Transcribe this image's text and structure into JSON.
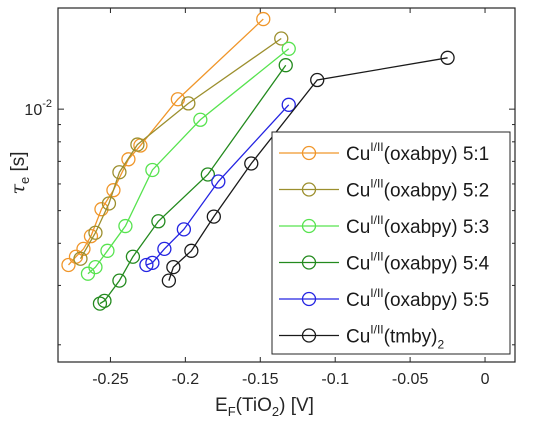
{
  "chart_data": {
    "type": "line",
    "title": "",
    "xlabel": {
      "main": "E",
      "sub": "F",
      "paren_open": "(TiO",
      "paren_sub": "2",
      "paren_close": ") [V]"
    },
    "ylabel": {
      "main": "τ",
      "sub": "e",
      "unit": " [s]"
    },
    "x_range": [
      -0.285,
      0.02
    ],
    "y_range_log10": [
      -2.75,
      -1.7
    ],
    "y_scale": "log",
    "x_ticks": [
      {
        "value": -0.25,
        "label": "-0.25"
      },
      {
        "value": -0.2,
        "label": "-0.2"
      },
      {
        "value": -0.15,
        "label": "-0.15"
      },
      {
        "value": -0.1,
        "label": "-0.1"
      },
      {
        "value": -0.05,
        "label": "-0.05"
      },
      {
        "value": 0,
        "label": "0"
      }
    ],
    "y_ticks": [
      {
        "value": 0.01,
        "label_base": "10",
        "label_exp": "-2"
      }
    ],
    "grid": false,
    "legend_position": "right",
    "series": [
      {
        "name": {
          "base": "Cu",
          "sup": "I/II",
          "rest": "(oxabpy) 5:1",
          "sub": ""
        },
        "color": "#F0962A",
        "x": [
          -0.278,
          -0.273,
          -0.268,
          -0.263,
          -0.256,
          -0.248,
          -0.238,
          -0.23,
          -0.205,
          -0.148
        ],
        "y": [
          0.00345,
          0.00365,
          0.00385,
          0.0042,
          0.00505,
          0.00575,
          0.0071,
          0.0078,
          0.0107,
          0.0185
        ]
      },
      {
        "name": {
          "base": "Cu",
          "sup": "I/II",
          "rest": "(oxabpy) 5:2",
          "sub": ""
        },
        "color": "#9C8F2E",
        "x": [
          -0.27,
          -0.26,
          -0.251,
          -0.244,
          -0.232,
          -0.198,
          -0.136
        ],
        "y": [
          0.0036,
          0.0043,
          0.00525,
          0.0065,
          0.00785,
          0.0104,
          0.0162
        ]
      },
      {
        "name": {
          "base": "Cu",
          "sup": "I/II",
          "rest": "(oxabpy) 5:3",
          "sub": ""
        },
        "color": "#57E34F",
        "x": [
          -0.265,
          -0.26,
          -0.252,
          -0.24,
          -0.222,
          -0.19,
          -0.131
        ],
        "y": [
          0.00325,
          0.0034,
          0.0038,
          0.0045,
          0.0066,
          0.0093,
          0.0151
        ]
      },
      {
        "name": {
          "base": "Cu",
          "sup": "I/II",
          "rest": "(oxabpy) 5:4",
          "sub": ""
        },
        "color": "#238A1E",
        "x": [
          -0.257,
          -0.254,
          -0.244,
          -0.235,
          -0.218,
          -0.185,
          -0.133
        ],
        "y": [
          0.00265,
          0.0027,
          0.0031,
          0.00365,
          0.00465,
          0.0064,
          0.0135
        ]
      },
      {
        "name": {
          "base": "Cu",
          "sup": "I/II",
          "rest": "(oxabpy) 5:5",
          "sub": ""
        },
        "color": "#2424E2",
        "x": [
          -0.226,
          -0.222,
          -0.214,
          -0.201,
          -0.178,
          -0.131
        ],
        "y": [
          0.00345,
          0.0035,
          0.00385,
          0.0044,
          0.0061,
          0.0103
        ]
      },
      {
        "name": {
          "base": "Cu",
          "sup": "I/II",
          "rest": "(tmby)",
          "sub": "2"
        },
        "color": "#1A1A1A",
        "x": [
          -0.211,
          -0.208,
          -0.196,
          -0.181,
          -0.156,
          -0.112,
          -0.025
        ],
        "y": [
          0.0031,
          0.0034,
          0.0038,
          0.0048,
          0.0069,
          0.0122,
          0.0142
        ]
      }
    ]
  }
}
